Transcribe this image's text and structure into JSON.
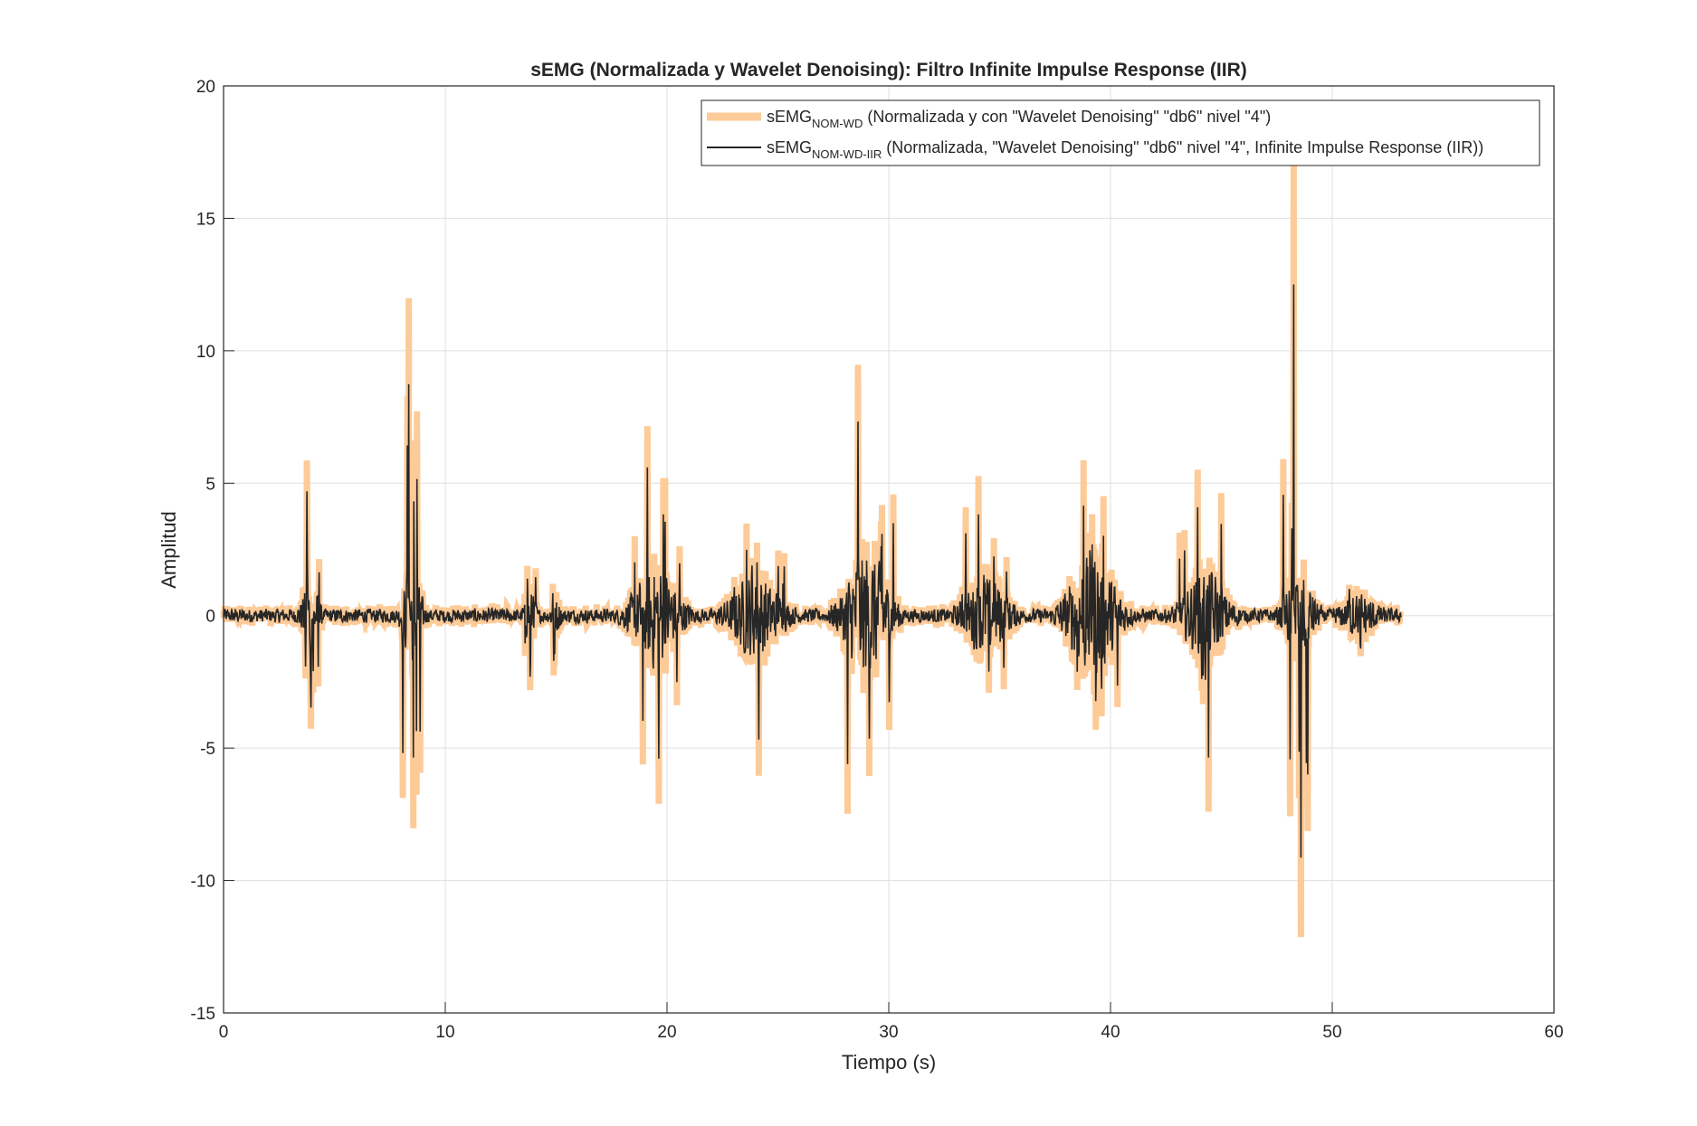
{
  "chart_data": {
    "type": "line",
    "title": "sEMG (Normalizada y Wavelet Denoising): Filtro Infinite Impulse Response (IIR)",
    "xlabel": "Tiempo (s)",
    "ylabel": "Amplitud",
    "xlim": [
      0,
      60
    ],
    "ylim": [
      -15,
      20
    ],
    "xticks": [
      0,
      10,
      20,
      30,
      40,
      50,
      60
    ],
    "yticks": [
      -15,
      -10,
      -5,
      0,
      5,
      10,
      15,
      20
    ],
    "xtick_labels": [
      "0",
      "10",
      "20",
      "30",
      "40",
      "50",
      "60"
    ],
    "ytick_labels": [
      "-15",
      "-10",
      "-5",
      "0",
      "5",
      "10",
      "15",
      "20"
    ],
    "grid": true,
    "legend_position": "top-right",
    "signal_end_time": 53.1,
    "series": [
      {
        "label_main": "sEMG",
        "label_sub": "NOM-WD",
        "label_rest": " (Normalizada y con \"Wavelet Denoising\" \"db6\" nivel \"4\")",
        "color": "#FDCB98",
        "style": "thick"
      },
      {
        "label_main": "sEMG",
        "label_sub": "NOM-WD-IIR",
        "label_rest": " (Normalizada, \"Wavelet Denoising\" \"db6\" nivel \"4\", Infinite Impulse Response (IIR))",
        "color": "#262626",
        "style": "thin"
      }
    ],
    "baseline_noise": 0.3,
    "bursts": [
      {
        "center": 3.9,
        "duration": 0.9,
        "max": 5.5,
        "min": -3.9,
        "level": 1.4
      },
      {
        "center": 8.5,
        "duration": 1.0,
        "max": 11.1,
        "min": -7.5,
        "level": 2.0
      },
      {
        "center": 13.8,
        "duration": 0.6,
        "max": 4.6,
        "min": -2.7,
        "level": 1.0
      },
      {
        "center": 15.0,
        "duration": 0.5,
        "max": 2.7,
        "min": -0.8,
        "level": 0.6
      },
      {
        "center": 19.5,
        "duration": 2.6,
        "max": 6.7,
        "min": -6.6,
        "level": 2.0
      },
      {
        "center": 24.0,
        "duration": 2.8,
        "max": 3.3,
        "min": -5.7,
        "level": 1.6
      },
      {
        "center": 29.0,
        "duration": 2.6,
        "max": 8.8,
        "min": -5.5,
        "level": 2.6
      },
      {
        "center": 34.4,
        "duration": 2.4,
        "max": 4.8,
        "min": -2.7,
        "level": 1.6
      },
      {
        "center": 39.2,
        "duration": 2.8,
        "max": 5.5,
        "min": -3.9,
        "level": 2.6
      },
      {
        "center": 44.3,
        "duration": 2.4,
        "max": 5.2,
        "min": -6.9,
        "level": 1.8
      },
      {
        "center": 48.5,
        "duration": 1.6,
        "max": 15.8,
        "min": -11.2,
        "level": 1.8
      },
      {
        "center": 51.2,
        "duration": 1.8,
        "max": 1.0,
        "min": -1.5,
        "level": 0.8
      }
    ]
  }
}
